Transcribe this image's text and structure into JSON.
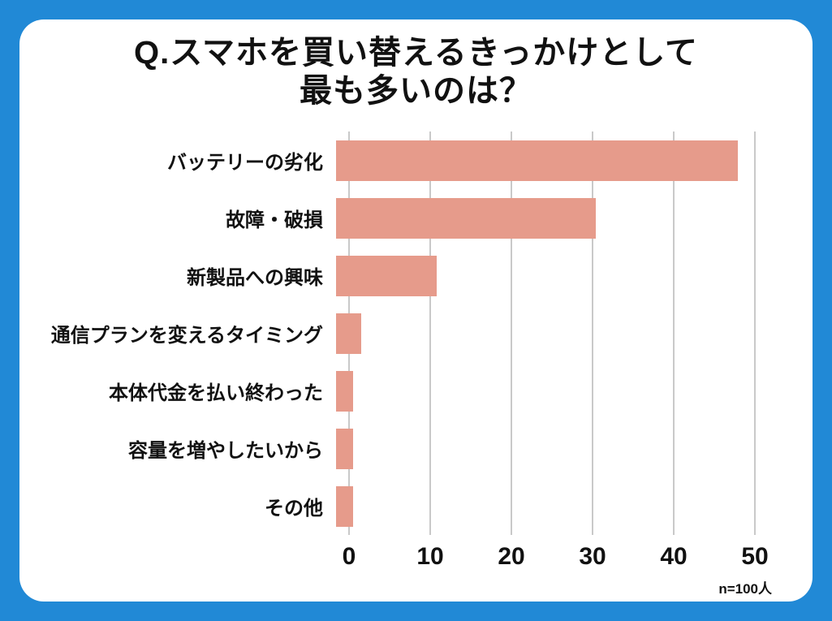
{
  "page": {
    "background_color": "#2189D6",
    "card_color": "#FFFFFF"
  },
  "title": {
    "line1": "Q.スマホを買い替えるきっかけとして",
    "line2": "最も多いのは？"
  },
  "footnote": "n=100人",
  "chart_data": {
    "type": "bar",
    "orientation": "horizontal",
    "title": "Q.スマホを買い替えるきっかけとして最も多いのは？",
    "categories": [
      "バッテリーの劣化",
      "故障・破損",
      "新製品への興味",
      "通信プランを変えるタイミング",
      "本体代金を払い終わった",
      "容量を増やしたいから",
      "その他"
    ],
    "values": [
      48,
      31,
      12,
      3,
      2,
      2,
      2
    ],
    "xlabel": "",
    "ylabel": "",
    "xlim": [
      0,
      50
    ],
    "xticks": [
      0,
      10,
      20,
      30,
      40,
      50
    ],
    "bar_color": "#E69B8B",
    "gridline_color": "#C9C9C9",
    "grid": true,
    "legend": false,
    "note": "n=100人"
  }
}
